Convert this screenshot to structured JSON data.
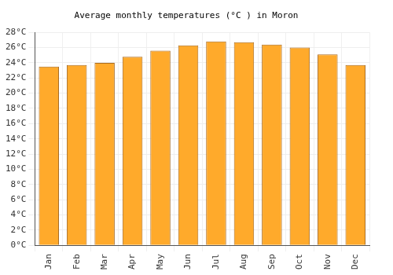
{
  "chart_data": {
    "type": "bar",
    "title": "Average monthly temperatures (°C ) in Moron",
    "categories": [
      "Jan",
      "Feb",
      "Mar",
      "Apr",
      "May",
      "Jun",
      "Jul",
      "Aug",
      "Sep",
      "Oct",
      "Nov",
      "Dec"
    ],
    "values": [
      23.5,
      23.7,
      24.0,
      24.8,
      25.6,
      26.3,
      26.8,
      26.7,
      26.4,
      26.0,
      25.1,
      23.7
    ],
    "color": "#ffaa2b",
    "ylim": [
      0,
      28
    ],
    "yticks": [
      {
        "value": 0,
        "label": "0°C"
      },
      {
        "value": 2,
        "label": "2°C"
      },
      {
        "value": 4,
        "label": "4°C"
      },
      {
        "value": 6,
        "label": "6°C"
      },
      {
        "value": 8,
        "label": "8°C"
      },
      {
        "value": 10,
        "label": "10°C"
      },
      {
        "value": 12,
        "label": "12°C"
      },
      {
        "value": 14,
        "label": "14°C"
      },
      {
        "value": 16,
        "label": "16°C"
      },
      {
        "value": 18,
        "label": "18°C"
      },
      {
        "value": 20,
        "label": "20°C"
      },
      {
        "value": 22,
        "label": "22°C"
      },
      {
        "value": 24,
        "label": "24°C"
      },
      {
        "value": 26,
        "label": "26°C"
      },
      {
        "value": 28,
        "label": "28°C"
      }
    ],
    "grid": true
  }
}
